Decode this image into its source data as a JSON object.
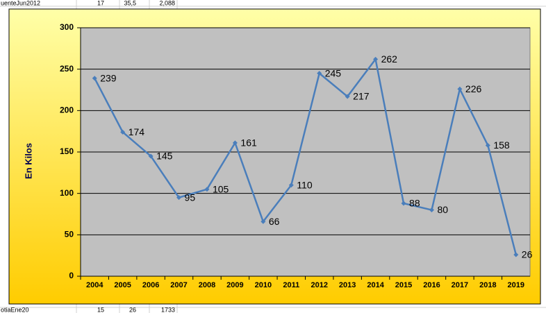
{
  "spreadsheet": {
    "top_row": [
      "uenteJun2012",
      "17",
      "35,5",
      "2,088"
    ],
    "bottom_row": [
      "otiaEne20",
      "15",
      "26",
      "1733"
    ]
  },
  "chart_data": {
    "type": "line",
    "ylabel": "En Kilos",
    "categories": [
      "2004",
      "2005",
      "2006",
      "2007",
      "2008",
      "2009",
      "2010",
      "2011",
      "2012",
      "2013",
      "2014",
      "2015",
      "2016",
      "2017",
      "2018",
      "2019"
    ],
    "values": [
      239,
      174,
      145,
      95,
      105,
      161,
      66,
      110,
      245,
      217,
      262,
      88,
      80,
      226,
      158,
      26
    ],
    "color": "#4a7ebb",
    "ylim": [
      0,
      300
    ],
    "yticks": [
      0,
      50,
      100,
      150,
      200,
      250,
      300
    ],
    "grid": true,
    "data_labels": true
  }
}
